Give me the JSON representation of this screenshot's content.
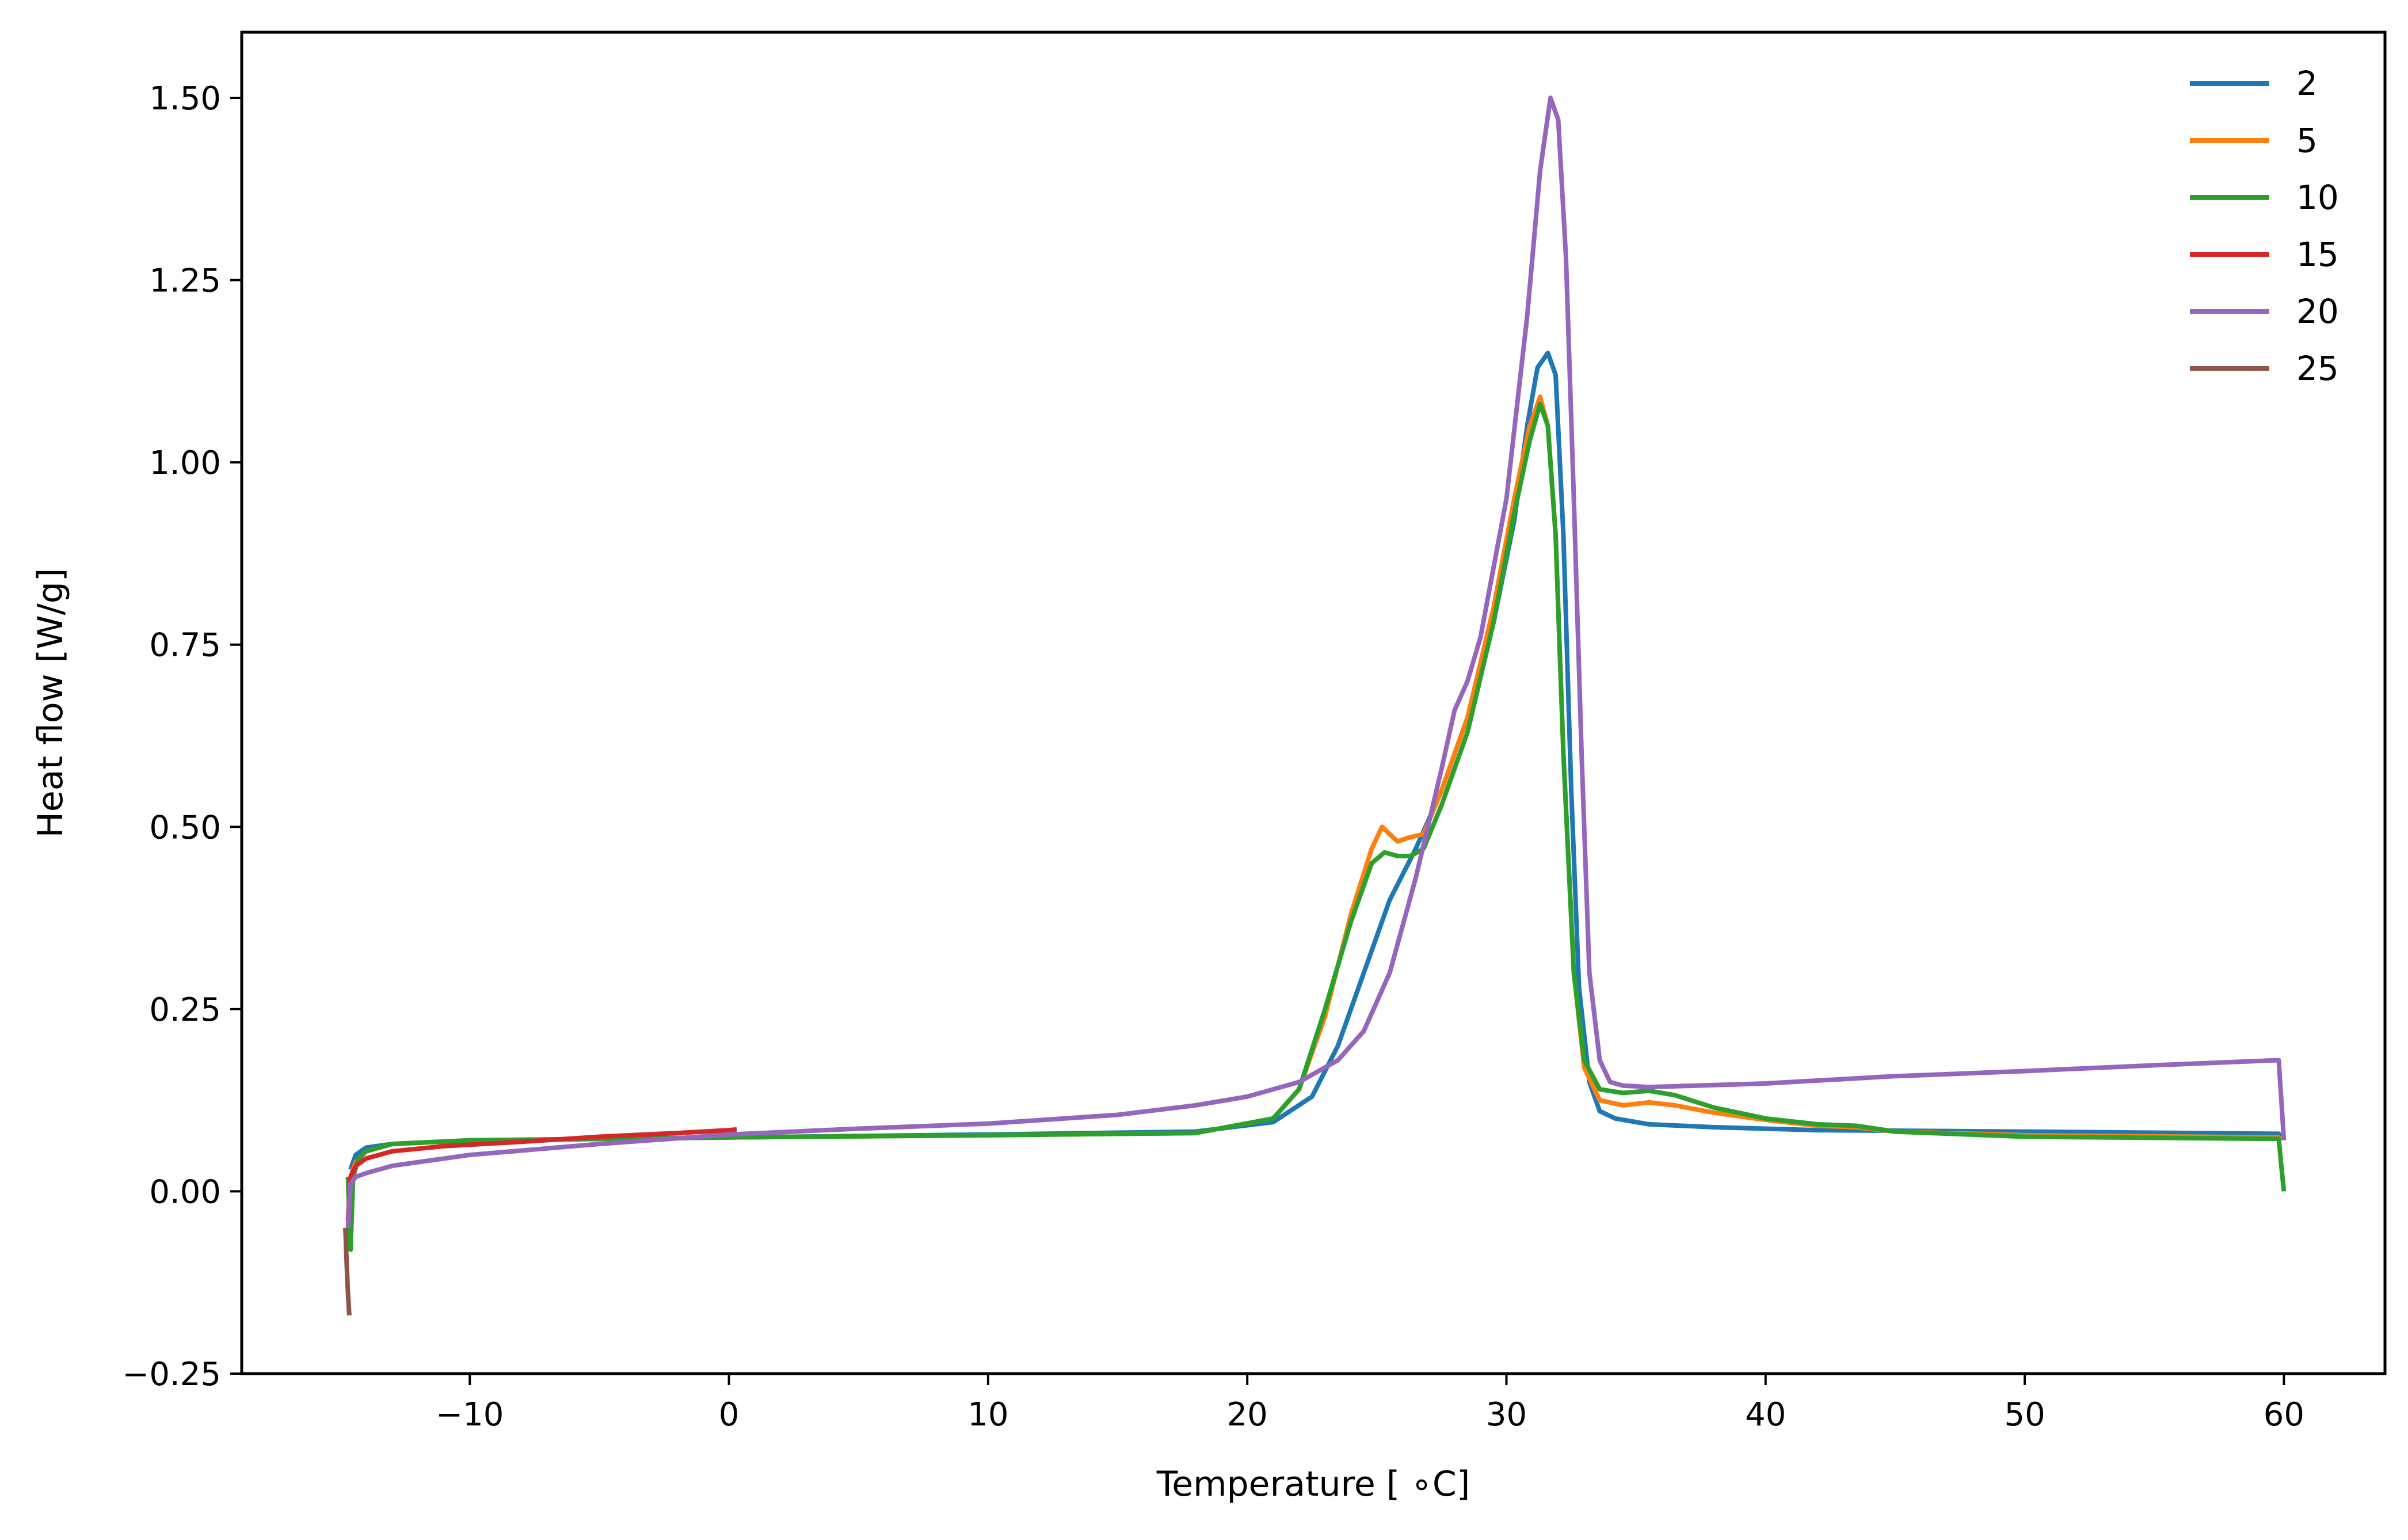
{
  "chart_data": {
    "type": "line",
    "title": "",
    "xlabel": "Temperature [$^\\circ$C]",
    "xlabel_display": "Temperature [ ∘C]",
    "ylabel": "Heat flow [W/g]",
    "xlim": [
      -18.8,
      63.9
    ],
    "ylim": [
      -0.25,
      1.59
    ],
    "xticks": [
      -10,
      0,
      10,
      20,
      30,
      40,
      50,
      60
    ],
    "xtick_labels": [
      "−10",
      "0",
      "10",
      "20",
      "30",
      "40",
      "50",
      "60"
    ],
    "yticks": [
      -0.25,
      0.0,
      0.25,
      0.5,
      0.75,
      1.0,
      1.25,
      1.5
    ],
    "ytick_labels": [
      "−0.25",
      "0.00",
      "0.25",
      "0.50",
      "0.75",
      "1.00",
      "1.25",
      "1.50"
    ],
    "grid": false,
    "legend": "top-right",
    "series": [
      {
        "name": "2",
        "color": "#1f77b4",
        "x": [
          -14.6,
          -14.4,
          -14.0,
          -13.0,
          -10.0,
          -5.0,
          0.0,
          10.0,
          18.0,
          21.0,
          22.5,
          23.5,
          24.5,
          25.5,
          26.5,
          27.5,
          28.5,
          29.5,
          30.3,
          30.8,
          31.2,
          31.6,
          31.9,
          32.2,
          32.5,
          32.8,
          33.2,
          33.6,
          34.2,
          35.5,
          38.0,
          42.0,
          50.0,
          59.8,
          59.9
        ],
        "y": [
          0.03,
          0.05,
          0.06,
          0.065,
          0.07,
          0.072,
          0.074,
          0.078,
          0.082,
          0.095,
          0.13,
          0.2,
          0.3,
          0.4,
          0.47,
          0.55,
          0.65,
          0.78,
          0.92,
          1.05,
          1.13,
          1.15,
          1.12,
          0.9,
          0.55,
          0.28,
          0.15,
          0.11,
          0.1,
          0.092,
          0.088,
          0.084,
          0.082,
          0.079,
          0.07
        ]
      },
      {
        "name": "5",
        "color": "#ff7f0e",
        "x": [
          -14.6,
          -14.4,
          -14.0,
          -13.0,
          -10.0,
          -5.0,
          0.0,
          10.0,
          18.0,
          21.0,
          22.0,
          23.0,
          24.0,
          24.8,
          25.2,
          25.5,
          25.8,
          26.2,
          26.8,
          27.5,
          28.5,
          29.5,
          30.3,
          30.9,
          31.3,
          31.6,
          31.9,
          32.2,
          32.6,
          33.0,
          33.6,
          34.5,
          35.5,
          36.5,
          38.0,
          40.0,
          42.0,
          43.5,
          45.0,
          50.0,
          59.8,
          59.9
        ],
        "y": [
          0.02,
          0.04,
          0.055,
          0.065,
          0.07,
          0.072,
          0.074,
          0.077,
          0.08,
          0.1,
          0.14,
          0.24,
          0.38,
          0.47,
          0.5,
          0.49,
          0.48,
          0.485,
          0.49,
          0.55,
          0.65,
          0.8,
          0.95,
          1.05,
          1.09,
          1.05,
          0.9,
          0.6,
          0.3,
          0.17,
          0.125,
          0.118,
          0.122,
          0.118,
          0.108,
          0.098,
          0.09,
          0.088,
          0.082,
          0.077,
          0.074,
          0.07
        ]
      },
      {
        "name": "10",
        "color": "#2ca02c",
        "x": [
          -14.7,
          -14.6,
          -14.5,
          -14.3,
          -14.0,
          -13.0,
          -10.0,
          -5.0,
          0.0,
          10.0,
          18.0,
          21.0,
          22.0,
          23.0,
          24.0,
          24.8,
          25.3,
          25.8,
          26.3,
          26.8,
          27.5,
          28.5,
          29.5,
          30.3,
          30.9,
          31.3,
          31.6,
          31.9,
          32.2,
          32.6,
          33.0,
          33.6,
          34.5,
          35.5,
          36.5,
          38.0,
          40.0,
          42.0,
          43.5,
          45.0,
          50.0,
          59.8,
          59.9,
          60.0
        ],
        "y": [
          0.02,
          -0.08,
          0.02,
          0.045,
          0.055,
          0.065,
          0.07,
          0.072,
          0.074,
          0.077,
          0.08,
          0.1,
          0.14,
          0.25,
          0.37,
          0.45,
          0.465,
          0.46,
          0.46,
          0.47,
          0.53,
          0.63,
          0.78,
          0.93,
          1.03,
          1.08,
          1.05,
          0.9,
          0.6,
          0.3,
          0.18,
          0.14,
          0.135,
          0.138,
          0.132,
          0.115,
          0.1,
          0.092,
          0.09,
          0.082,
          0.075,
          0.072,
          0.035,
          0.0
        ]
      },
      {
        "name": "15",
        "color": "#d62728",
        "x": [
          -14.7,
          -14.6,
          -14.4,
          -14.0,
          -13.0,
          -11.0,
          -8.0,
          -5.0,
          -2.0,
          0.0,
          0.3
        ],
        "y": [
          -0.04,
          0.02,
          0.035,
          0.045,
          0.055,
          0.062,
          0.068,
          0.075,
          0.08,
          0.084,
          0.085
        ]
      },
      {
        "name": "20",
        "color": "#9467bd",
        "x": [
          -14.7,
          -14.6,
          -14.4,
          -14.0,
          -13.0,
          -10.0,
          -5.0,
          0.0,
          5.0,
          10.0,
          15.0,
          18.0,
          20.0,
          22.0,
          23.5,
          24.5,
          25.5,
          26.5,
          27.5,
          28.0,
          28.5,
          29.0,
          30.0,
          30.8,
          31.3,
          31.7,
          32.0,
          32.3,
          32.6,
          32.9,
          33.2,
          33.6,
          34.0,
          34.5,
          35.5,
          40.0,
          45.0,
          50.0,
          55.0,
          59.8,
          60.0
        ],
        "y": [
          -0.05,
          0.01,
          0.02,
          0.025,
          0.035,
          0.05,
          0.065,
          0.078,
          0.086,
          0.093,
          0.105,
          0.118,
          0.13,
          0.15,
          0.18,
          0.22,
          0.3,
          0.43,
          0.58,
          0.66,
          0.7,
          0.76,
          0.95,
          1.2,
          1.4,
          1.5,
          1.47,
          1.28,
          0.95,
          0.6,
          0.3,
          0.18,
          0.15,
          0.145,
          0.143,
          0.148,
          0.158,
          0.165,
          0.173,
          0.18,
          0.07
        ]
      },
      {
        "name": "25",
        "color": "#8c564b",
        "x": [
          -14.8,
          -14.75,
          -14.7,
          -14.65
        ],
        "y": [
          -0.05,
          -0.1,
          -0.14,
          -0.17
        ]
      }
    ]
  }
}
